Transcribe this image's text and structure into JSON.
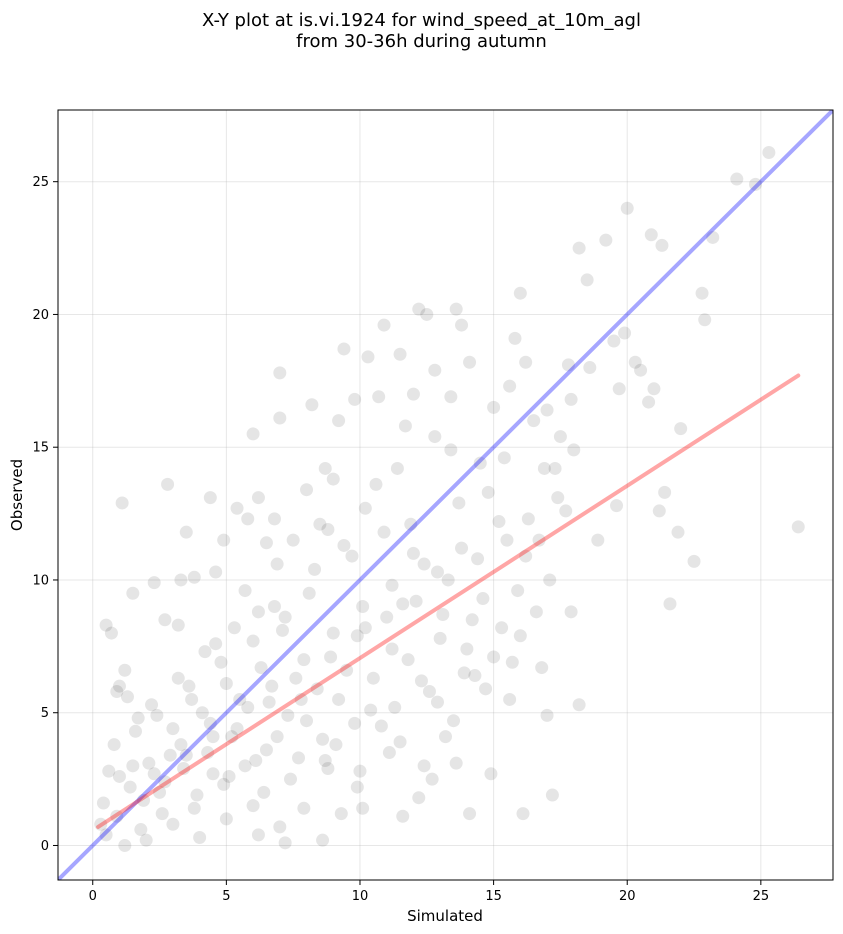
{
  "chart_data": {
    "type": "scatter",
    "title_lines": [
      "X-Y plot at is.vi.1924 for wind_speed_at_10m_agl",
      "from 30-36h during autumn"
    ],
    "xlabel": "Simulated",
    "ylabel": "Observed",
    "xlim": [
      -1.3,
      27.7
    ],
    "ylim": [
      -1.3,
      27.7
    ],
    "xticks": [
      0,
      5,
      10,
      15,
      20,
      25
    ],
    "yticks": [
      0,
      5,
      10,
      15,
      20,
      25
    ],
    "grid": true,
    "marker_color": "#000000",
    "marker_alpha": 0.1,
    "lines": [
      {
        "kind": "identity",
        "color": "#0000ff",
        "alpha": 0.35,
        "x": [
          -1.3,
          27.7
        ],
        "y": [
          -1.3,
          27.7
        ]
      },
      {
        "kind": "regression",
        "color": "#ff0000",
        "alpha": 0.35,
        "x": [
          0.2,
          26.4
        ],
        "y": [
          0.7,
          17.7
        ]
      }
    ],
    "points": [
      [
        0.5,
        8.3
      ],
      [
        0.7,
        8.0
      ],
      [
        1.1,
        12.9
      ],
      [
        1.5,
        9.5
      ],
      [
        2.8,
        13.6
      ],
      [
        3.5,
        11.8
      ],
      [
        3.8,
        10.1
      ],
      [
        4.4,
        13.1
      ],
      [
        4.9,
        11.5
      ],
      [
        5.4,
        12.7
      ],
      [
        5.8,
        12.3
      ],
      [
        6.0,
        15.5
      ],
      [
        6.2,
        13.1
      ],
      [
        6.5,
        11.4
      ],
      [
        6.8,
        12.3
      ],
      [
        7.0,
        17.8
      ],
      [
        7.0,
        16.1
      ],
      [
        7.5,
        11.5
      ],
      [
        8.0,
        13.4
      ],
      [
        8.2,
        16.6
      ],
      [
        8.7,
        14.2
      ],
      [
        9.2,
        16.0
      ],
      [
        9.4,
        18.7
      ],
      [
        9.8,
        16.8
      ],
      [
        10.3,
        18.4
      ],
      [
        10.7,
        16.9
      ],
      [
        10.9,
        19.6
      ],
      [
        11.5,
        18.5
      ],
      [
        11.7,
        15.8
      ],
      [
        12.0,
        17.0
      ],
      [
        12.2,
        20.2
      ],
      [
        12.5,
        20.0
      ],
      [
        12.8,
        17.9
      ],
      [
        13.4,
        16.9
      ],
      [
        13.6,
        20.2
      ],
      [
        13.8,
        19.6
      ],
      [
        14.1,
        18.2
      ],
      [
        14.5,
        14.4
      ],
      [
        15.0,
        16.5
      ],
      [
        15.6,
        17.3
      ],
      [
        15.8,
        19.1
      ],
      [
        16.0,
        20.8
      ],
      [
        16.2,
        18.2
      ],
      [
        16.5,
        16.0
      ],
      [
        17.0,
        16.4
      ],
      [
        17.3,
        14.2
      ],
      [
        17.5,
        15.4
      ],
      [
        17.8,
        18.1
      ],
      [
        17.9,
        16.8
      ],
      [
        18.2,
        22.5
      ],
      [
        18.5,
        21.3
      ],
      [
        18.6,
        18.0
      ],
      [
        19.2,
        22.8
      ],
      [
        19.5,
        19.0
      ],
      [
        19.7,
        17.2
      ],
      [
        19.9,
        19.3
      ],
      [
        20.0,
        24.0
      ],
      [
        20.3,
        18.2
      ],
      [
        20.5,
        17.9
      ],
      [
        20.8,
        16.7
      ],
      [
        20.9,
        23.0
      ],
      [
        21.3,
        22.6
      ],
      [
        21.0,
        17.2
      ],
      [
        21.2,
        12.6
      ],
      [
        21.4,
        13.3
      ],
      [
        21.6,
        9.1
      ],
      [
        21.9,
        11.8
      ],
      [
        22.0,
        15.7
      ],
      [
        22.5,
        10.7
      ],
      [
        22.8,
        20.8
      ],
      [
        22.9,
        19.8
      ],
      [
        23.2,
        22.9
      ],
      [
        24.1,
        25.1
      ],
      [
        24.8,
        24.9
      ],
      [
        25.3,
        26.1
      ],
      [
        26.4,
        12.0
      ],
      [
        17.0,
        4.9
      ],
      [
        17.2,
        1.9
      ],
      [
        18.2,
        5.3
      ],
      [
        16.1,
        1.2
      ],
      [
        14.9,
        2.7
      ],
      [
        14.1,
        1.2
      ],
      [
        13.6,
        3.1
      ],
      [
        12.2,
        1.8
      ],
      [
        11.6,
        1.1
      ],
      [
        10.1,
        1.4
      ],
      [
        9.3,
        1.2
      ],
      [
        8.6,
        0.2
      ],
      [
        7.2,
        0.1
      ],
      [
        1.0,
        6.0
      ],
      [
        1.3,
        5.6
      ],
      [
        1.2,
        6.6
      ],
      [
        0.9,
        5.8
      ],
      [
        1.7,
        4.8
      ],
      [
        0.6,
        2.8
      ],
      [
        0.8,
        3.8
      ],
      [
        2.3,
        9.9
      ],
      [
        3.3,
        10.0
      ],
      [
        4.6,
        10.3
      ],
      [
        5.7,
        9.6
      ],
      [
        3.2,
        8.3
      ],
      [
        2.7,
        8.5
      ],
      [
        14.8,
        13.3
      ],
      [
        15.2,
        12.2
      ],
      [
        16.7,
        11.5
      ],
      [
        17.7,
        12.6
      ],
      [
        18.9,
        11.5
      ],
      [
        19.6,
        12.8
      ],
      [
        16.2,
        10.9
      ],
      [
        17.1,
        10.0
      ],
      [
        17.9,
        8.8
      ],
      [
        13.4,
        14.9
      ],
      [
        12.8,
        15.4
      ],
      [
        11.4,
        14.2
      ],
      [
        10.6,
        13.6
      ],
      [
        9.0,
        13.8
      ],
      [
        8.5,
        12.1
      ],
      [
        16.8,
        6.7
      ],
      [
        15.6,
        5.5
      ],
      [
        13.2,
        4.1
      ],
      [
        12.7,
        2.5
      ],
      [
        11.1,
        3.5
      ],
      [
        9.9,
        2.2
      ],
      [
        8.8,
        2.9
      ],
      [
        7.9,
        1.4
      ],
      [
        7.0,
        0.7
      ],
      [
        6.2,
        0.4
      ],
      [
        5.8,
        5.2
      ],
      [
        6.3,
        6.7
      ],
      [
        4.6,
        7.6
      ],
      [
        4.5,
        4.1
      ],
      [
        3.5,
        3.4
      ],
      [
        2.6,
        1.2
      ],
      [
        1.8,
        0.6
      ],
      [
        2.9,
        3.4
      ],
      [
        3.7,
        5.5
      ],
      [
        4.5,
        2.7
      ],
      [
        5.2,
        4.1
      ],
      [
        6.1,
        3.2
      ],
      [
        7.3,
        4.9
      ],
      [
        8.4,
        5.9
      ],
      [
        9.5,
        6.6
      ],
      [
        10.4,
        5.1
      ],
      [
        11.2,
        7.4
      ],
      [
        12.3,
        6.2
      ],
      [
        13.1,
        8.7
      ],
      [
        14.0,
        7.4
      ],
      [
        14.6,
        9.3
      ],
      [
        15.3,
        8.2
      ],
      [
        9.7,
        10.9
      ],
      [
        10.9,
        11.8
      ],
      [
        12.0,
        11.0
      ],
      [
        8.1,
        9.5
      ],
      [
        7.1,
        8.1
      ],
      [
        6.2,
        8.8
      ],
      [
        12.9,
        10.3
      ],
      [
        13.8,
        11.2
      ],
      [
        11.6,
        9.1
      ],
      [
        10.2,
        8.2
      ],
      [
        5.0,
        6.1
      ],
      [
        4.1,
        5.0
      ],
      [
        3.0,
        4.4
      ],
      [
        2.1,
        3.1
      ],
      [
        1.4,
        2.2
      ],
      [
        0.9,
        1.1
      ],
      [
        0.5,
        0.4
      ],
      [
        1.9,
        1.7
      ],
      [
        2.7,
        2.4
      ],
      [
        3.4,
        2.9
      ],
      [
        4.3,
        3.5
      ],
      [
        5.4,
        4.4
      ],
      [
        6.6,
        5.4
      ],
      [
        7.6,
        6.3
      ],
      [
        8.9,
        7.1
      ],
      [
        9.9,
        7.9
      ],
      [
        11.0,
        8.6
      ],
      [
        12.1,
        9.2
      ],
      [
        13.3,
        10.0
      ],
      [
        14.4,
        10.8
      ],
      [
        15.5,
        11.5
      ],
      [
        16.3,
        12.3
      ],
      [
        17.4,
        13.1
      ],
      [
        5.7,
        3.0
      ],
      [
        6.9,
        4.1
      ],
      [
        8.0,
        4.7
      ],
      [
        9.2,
        5.5
      ],
      [
        10.5,
        6.3
      ],
      [
        11.8,
        7.0
      ],
      [
        13.0,
        7.8
      ],
      [
        14.2,
        8.5
      ],
      [
        3.9,
        1.9
      ],
      [
        5.1,
        2.6
      ],
      [
        6.4,
        2.0
      ],
      [
        7.7,
        3.3
      ],
      [
        8.6,
        4.0
      ],
      [
        9.8,
        4.6
      ],
      [
        11.3,
        5.2
      ],
      [
        12.6,
        5.8
      ],
      [
        13.9,
        6.5
      ],
      [
        15.0,
        7.1
      ],
      [
        16.0,
        7.9
      ],
      [
        2.2,
        5.3
      ],
      [
        3.2,
        6.3
      ],
      [
        4.2,
        7.3
      ],
      [
        5.3,
        8.2
      ],
      [
        6.8,
        9.0
      ],
      [
        8.3,
        10.4
      ],
      [
        9.4,
        11.3
      ],
      [
        1.6,
        4.3
      ],
      [
        2.4,
        4.9
      ],
      [
        3.6,
        6.0
      ],
      [
        4.8,
        6.9
      ],
      [
        6.0,
        7.7
      ],
      [
        7.2,
        8.6
      ],
      [
        2.0,
        0.2
      ],
      [
        3.0,
        0.8
      ],
      [
        4.0,
        0.3
      ],
      [
        5.0,
        1.0
      ],
      [
        6.0,
        1.5
      ],
      [
        1.2,
        0.0
      ],
      [
        0.4,
        1.6
      ],
      [
        1.5,
        3.0
      ],
      [
        2.5,
        2.0
      ],
      [
        3.8,
        1.4
      ],
      [
        4.9,
        2.3
      ],
      [
        6.5,
        3.6
      ],
      [
        7.8,
        5.5
      ],
      [
        9.1,
        3.8
      ],
      [
        10.8,
        4.5
      ],
      [
        12.4,
        3.0
      ],
      [
        13.5,
        4.7
      ],
      [
        14.7,
        5.9
      ],
      [
        15.7,
        6.9
      ],
      [
        16.6,
        8.8
      ],
      [
        7.4,
        2.5
      ],
      [
        8.7,
        3.2
      ],
      [
        10.0,
        2.8
      ],
      [
        11.5,
        3.9
      ],
      [
        12.9,
        5.4
      ],
      [
        14.3,
        6.4
      ],
      [
        15.9,
        9.6
      ],
      [
        6.7,
        6.0
      ],
      [
        7.9,
        7.0
      ],
      [
        9.0,
        8.0
      ],
      [
        10.1,
        9.0
      ],
      [
        11.2,
        9.8
      ],
      [
        12.4,
        10.6
      ],
      [
        5.5,
        5.5
      ],
      [
        4.4,
        4.6
      ],
      [
        3.3,
        3.8
      ],
      [
        2.3,
        2.7
      ],
      [
        1.0,
        2.6
      ],
      [
        0.3,
        0.8
      ],
      [
        6.9,
        10.6
      ],
      [
        8.8,
        11.9
      ],
      [
        10.2,
        12.7
      ],
      [
        11.9,
        12.1
      ],
      [
        13.7,
        12.9
      ],
      [
        15.4,
        14.6
      ],
      [
        16.9,
        14.2
      ],
      [
        18.0,
        14.9
      ]
    ]
  },
  "colors": {
    "identity_line": "#0000ff",
    "regression_line": "#ff0000",
    "markers": "#000000",
    "grid": "#b0b0b0"
  }
}
